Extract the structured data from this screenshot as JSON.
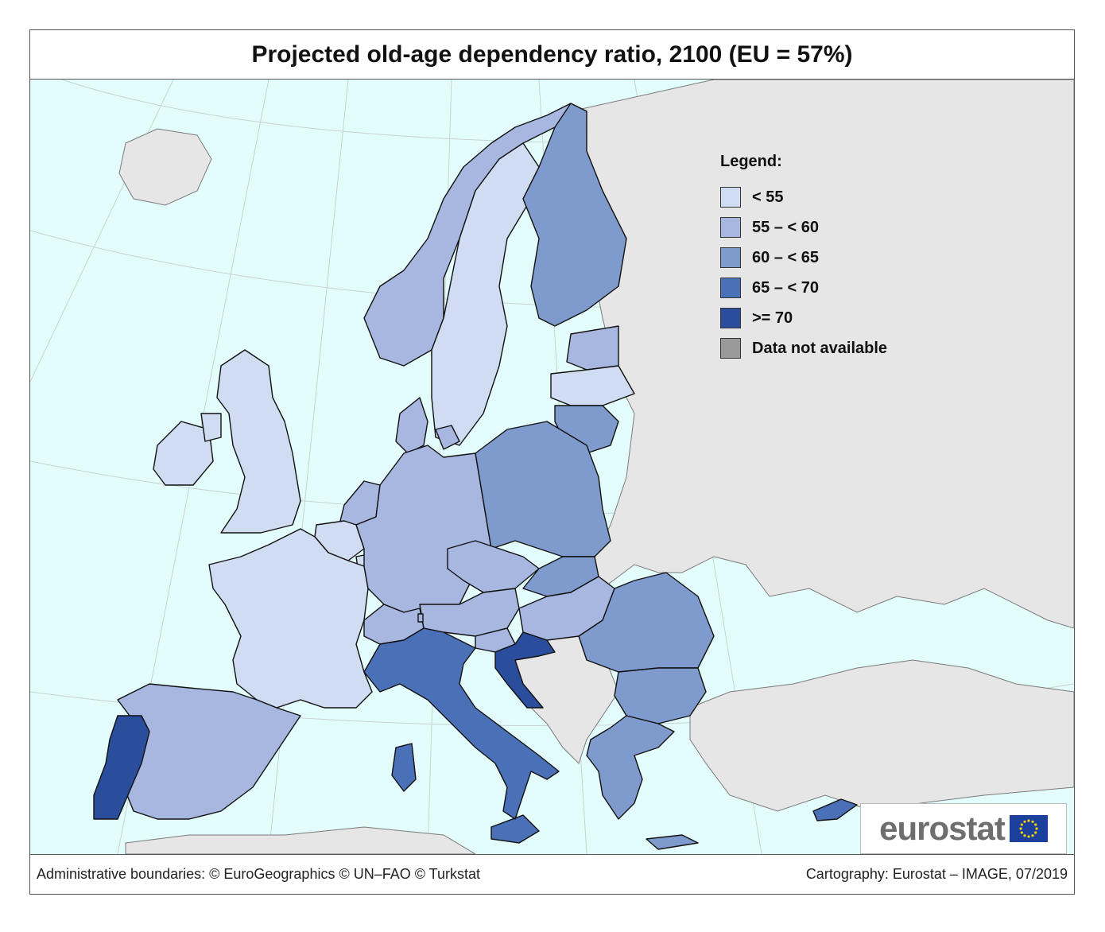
{
  "title": "Projected old-age dependency ratio, 2100 (EU = 57%)",
  "legend": {
    "title": "Legend:",
    "items": [
      {
        "label": "< 55",
        "color": "#cfdcf2"
      },
      {
        "label": "55 – < 60",
        "color": "#a8b7e0"
      },
      {
        "label": "60 – < 65",
        "color": "#7f9bcd"
      },
      {
        "label": "65 – < 70",
        "color": "#4a70b8"
      },
      {
        "label": ">= 70",
        "color": "#2a4d9c"
      },
      {
        "label": "Data not available",
        "color": "#9a9a9a"
      }
    ]
  },
  "logo": {
    "text": "eurostat",
    "flag_color": "#1b3f9a",
    "star_color": "#f5d10a"
  },
  "footer": {
    "left": "Administrative boundaries: © EuroGeographics © UN–FAO © Turkstat",
    "right": "Cartography: Eurostat – IMAGE, 07/2019"
  },
  "colors": {
    "sea": "#e3fdfd",
    "non_eu": "#e6e6e6",
    "graticule": "#c8d2d2",
    "border": "#111111",
    "coast": "#7a7a7a"
  },
  "countries": [
    {
      "id": "iceland",
      "class": "non-eu"
    },
    {
      "id": "norway",
      "class": "55 – < 60"
    },
    {
      "id": "sweden",
      "class": "< 55"
    },
    {
      "id": "finland",
      "class": "60 – < 65"
    },
    {
      "id": "estonia",
      "class": "55 – < 60"
    },
    {
      "id": "latvia",
      "class": "< 55"
    },
    {
      "id": "lithuania",
      "class": "60 – < 65"
    },
    {
      "id": "denmark",
      "class": "55 – < 60"
    },
    {
      "id": "ireland",
      "class": "< 55"
    },
    {
      "id": "united-kingdom",
      "class": "< 55"
    },
    {
      "id": "netherlands",
      "class": "55 – < 60"
    },
    {
      "id": "belgium",
      "class": "< 55"
    },
    {
      "id": "luxembourg",
      "class": "< 55"
    },
    {
      "id": "france",
      "class": "< 55"
    },
    {
      "id": "germany",
      "class": "55 – < 60"
    },
    {
      "id": "poland",
      "class": "60 – < 65"
    },
    {
      "id": "czechia",
      "class": "55 – < 60"
    },
    {
      "id": "slovakia",
      "class": "60 – < 65"
    },
    {
      "id": "austria",
      "class": "55 – < 60"
    },
    {
      "id": "switzerland",
      "class": "55 – < 60"
    },
    {
      "id": "liechtenstein",
      "class": "55 – < 60"
    },
    {
      "id": "hungary",
      "class": "55 – < 60"
    },
    {
      "id": "slovenia",
      "class": "55 – < 60"
    },
    {
      "id": "croatia",
      "class": ">= 70"
    },
    {
      "id": "romania",
      "class": "60 – < 65"
    },
    {
      "id": "bulgaria",
      "class": "60 – < 65"
    },
    {
      "id": "greece",
      "class": "60 – < 65"
    },
    {
      "id": "cyprus",
      "class": "65 – < 70"
    },
    {
      "id": "malta",
      "class": "55 – < 60"
    },
    {
      "id": "italy",
      "class": "65 – < 70"
    },
    {
      "id": "spain",
      "class": "55 – < 60"
    },
    {
      "id": "portugal",
      "class": ">= 70"
    },
    {
      "id": "western-balkans",
      "class": "non-eu"
    },
    {
      "id": "eastern-europe",
      "class": "non-eu"
    },
    {
      "id": "turkey",
      "class": "non-eu"
    },
    {
      "id": "north-africa",
      "class": "non-eu"
    }
  ]
}
